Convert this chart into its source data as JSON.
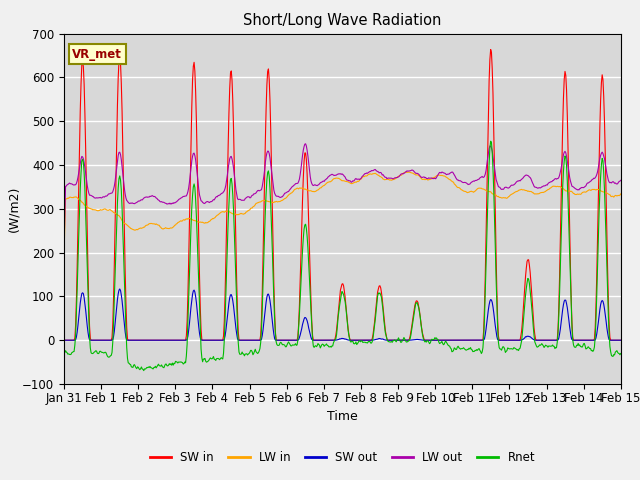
{
  "title": "Short/Long Wave Radiation",
  "xlabel": "Time",
  "ylabel": "(W/m2)",
  "ylim": [
    -100,
    700
  ],
  "yticks": [
    -100,
    0,
    100,
    200,
    300,
    400,
    500,
    600,
    700
  ],
  "label_annotation": "VR_met",
  "series_colors": {
    "SW_in": "#ff0000",
    "LW_in": "#ffa500",
    "SW_out": "#0000cc",
    "LW_out": "#aa00aa",
    "Rnet": "#00bb00"
  },
  "legend_labels": [
    "SW in",
    "LW in",
    "SW out",
    "LW out",
    "Rnet"
  ],
  "background_color": "#d8d8d8",
  "xtick_labels": [
    "Jan 31",
    "Feb 1",
    "Feb 2",
    "Feb 3",
    "Feb 4",
    "Feb 5",
    "Feb 6",
    "Feb 7",
    "Feb 8",
    "Feb 9",
    "Feb 10",
    "Feb 11",
    "Feb 12",
    "Feb 13",
    "Feb 14",
    "Feb 15"
  ],
  "grid_color": "#ffffff",
  "line_width": 0.8,
  "figsize": [
    6.4,
    4.8
  ],
  "dpi": 100
}
